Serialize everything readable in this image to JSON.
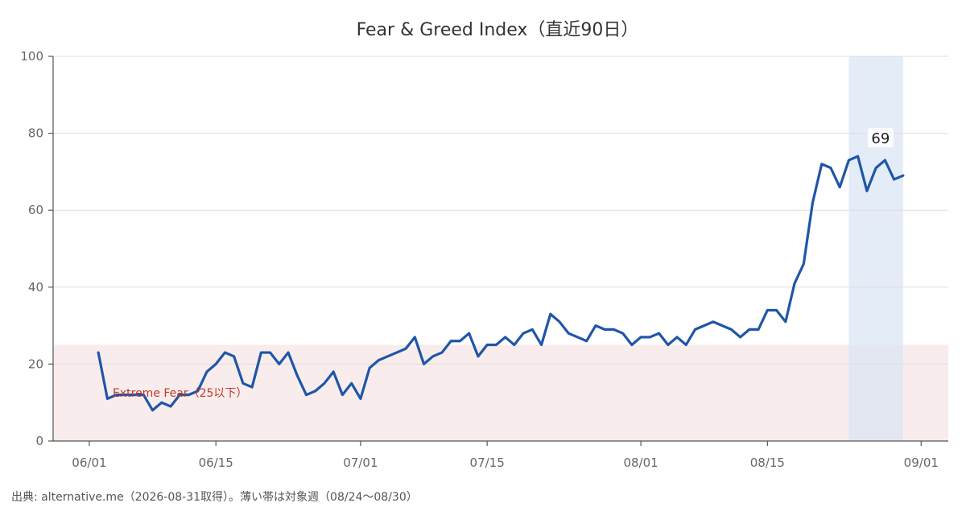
{
  "chart_data": {
    "type": "line",
    "title": "Fear & Greed Index（直近90日）",
    "xlabel": "",
    "ylabel": "",
    "ylim": [
      0,
      100
    ],
    "yticks": [
      0,
      20,
      40,
      60,
      80,
      100
    ],
    "xticks": [
      {
        "date": "2026-06-01",
        "label": "06/01"
      },
      {
        "date": "2026-06-15",
        "label": "06/15"
      },
      {
        "date": "2026-07-01",
        "label": "07/01"
      },
      {
        "date": "2026-07-15",
        "label": "07/15"
      },
      {
        "date": "2026-08-01",
        "label": "08/01"
      },
      {
        "date": "2026-08-15",
        "label": "08/15"
      },
      {
        "date": "2026-09-01",
        "label": "09/01"
      }
    ],
    "xlim": [
      "2026-05-28",
      "2026-09-04"
    ],
    "grid": true,
    "line_color": "#1f56a8",
    "series": [
      {
        "name": "",
        "x": [
          "2026-06-02",
          "2026-06-03",
          "2026-06-04",
          "2026-06-05",
          "2026-06-06",
          "2026-06-07",
          "2026-06-08",
          "2026-06-09",
          "2026-06-10",
          "2026-06-11",
          "2026-06-12",
          "2026-06-13",
          "2026-06-14",
          "2026-06-15",
          "2026-06-16",
          "2026-06-17",
          "2026-06-18",
          "2026-06-19",
          "2026-06-20",
          "2026-06-21",
          "2026-06-22",
          "2026-06-23",
          "2026-06-24",
          "2026-06-25",
          "2026-06-26",
          "2026-06-27",
          "2026-06-28",
          "2026-06-29",
          "2026-06-30",
          "2026-07-01",
          "2026-07-02",
          "2026-07-03",
          "2026-07-04",
          "2026-07-05",
          "2026-07-06",
          "2026-07-07",
          "2026-07-08",
          "2026-07-09",
          "2026-07-10",
          "2026-07-11",
          "2026-07-12",
          "2026-07-13",
          "2026-07-14",
          "2026-07-15",
          "2026-07-16",
          "2026-07-17",
          "2026-07-18",
          "2026-07-19",
          "2026-07-20",
          "2026-07-21",
          "2026-07-22",
          "2026-07-23",
          "2026-07-24",
          "2026-07-25",
          "2026-07-26",
          "2026-07-27",
          "2026-07-28",
          "2026-07-29",
          "2026-07-30",
          "2026-07-31",
          "2026-08-01",
          "2026-08-02",
          "2026-08-03",
          "2026-08-04",
          "2026-08-05",
          "2026-08-06",
          "2026-08-07",
          "2026-08-08",
          "2026-08-09",
          "2026-08-10",
          "2026-08-11",
          "2026-08-12",
          "2026-08-13",
          "2026-08-14",
          "2026-08-15",
          "2026-08-16",
          "2026-08-17",
          "2026-08-18",
          "2026-08-19",
          "2026-08-20",
          "2026-08-21",
          "2026-08-22",
          "2026-08-23",
          "2026-08-24",
          "2026-08-25",
          "2026-08-26",
          "2026-08-27",
          "2026-08-28",
          "2026-08-29",
          "2026-08-30"
        ],
        "values": [
          23,
          11,
          12,
          12,
          12,
          12,
          8,
          10,
          9,
          12,
          12,
          13,
          18,
          20,
          23,
          22,
          15,
          14,
          23,
          23,
          20,
          23,
          17,
          12,
          13,
          15,
          18,
          12,
          15,
          11,
          19,
          21,
          22,
          23,
          24,
          27,
          20,
          22,
          23,
          26,
          26,
          28,
          22,
          25,
          25,
          27,
          25,
          28,
          29,
          25,
          33,
          31,
          28,
          27,
          26,
          30,
          29,
          29,
          28,
          25,
          27,
          27,
          28,
          25,
          27,
          25,
          29,
          30,
          31,
          30,
          29,
          27,
          29,
          29,
          34,
          34,
          31,
          41,
          46,
          62,
          72,
          71,
          66,
          73,
          74,
          65,
          71,
          73,
          68,
          69
        ]
      }
    ],
    "highlight_band": {
      "from": "2026-08-24",
      "to": "2026-08-30",
      "color": "#dbe6f4"
    },
    "fear_zone": {
      "from": 0,
      "to": 25,
      "color": "#f9ecec",
      "label": "Extreme Fear（25以下）"
    },
    "last_value_label": "69"
  },
  "footer": {
    "source": "出典: alternative.me（2026-08-31取得）。薄い帯は対象週（08/24〜08/30）"
  }
}
